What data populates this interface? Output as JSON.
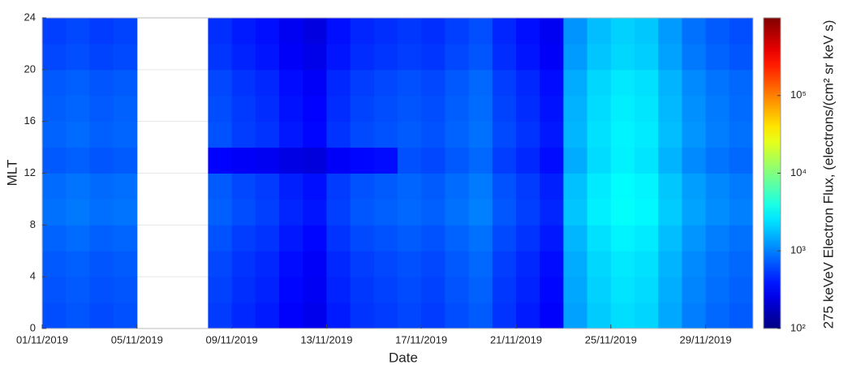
{
  "chart_data": {
    "type": "heatmap",
    "xlabel": "Date",
    "ylabel": "MLT",
    "categories": [
      "01/11/2019",
      null,
      null,
      null,
      "05/11/2019",
      null,
      null,
      null,
      "09/11/2019",
      null,
      null,
      null,
      "13/11/2019",
      null,
      null,
      null,
      "17/11/2019",
      null,
      null,
      null,
      "21/11/2019",
      null,
      null,
      null,
      "25/11/2019",
      null,
      null,
      null,
      "29/11/2019",
      null
    ],
    "ybins": [
      0,
      2,
      4,
      6,
      8,
      10,
      12,
      14,
      16,
      18,
      20,
      22,
      24
    ],
    "ylim": [
      0,
      24
    ],
    "yticks": [
      0,
      4,
      8,
      12,
      16,
      20,
      24
    ],
    "grid": true,
    "z": [
      [
        630,
        680,
        610,
        650,
        null,
        null,
        null,
        540,
        450,
        400,
        310,
        270,
        400,
        500,
        540,
        590,
        540,
        630,
        720,
        500,
        400,
        310,
        1350,
        1980,
        2340,
        2160,
        1440,
        990,
        810,
        720
      ],
      [
        670,
        710,
        650,
        680,
        null,
        null,
        null,
        570,
        480,
        430,
        330,
        290,
        430,
        520,
        570,
        620,
        570,
        670,
        760,
        520,
        430,
        330,
        1430,
        2090,
        2470,
        2280,
        1520,
        1050,
        860,
        760
      ],
      [
        700,
        750,
        680,
        720,
        null,
        null,
        null,
        600,
        500,
        450,
        350,
        300,
        450,
        550,
        600,
        650,
        600,
        700,
        800,
        550,
        450,
        350,
        1500,
        2200,
        2600,
        2400,
        1600,
        1100,
        900,
        800
      ],
      [
        770,
        830,
        750,
        790,
        null,
        null,
        null,
        660,
        550,
        500,
        390,
        330,
        500,
        610,
        660,
        720,
        660,
        770,
        880,
        610,
        500,
        390,
        1650,
        2420,
        2860,
        2640,
        1760,
        1210,
        990,
        880
      ],
      [
        880,
        940,
        850,
        900,
        null,
        null,
        null,
        750,
        630,
        560,
        440,
        380,
        560,
        690,
        750,
        810,
        750,
        880,
        1000,
        690,
        560,
        440,
        1880,
        2750,
        3250,
        3000,
        2000,
        1380,
        1130,
        1000
      ],
      [
        840,
        900,
        820,
        860,
        null,
        null,
        null,
        720,
        600,
        540,
        420,
        360,
        540,
        660,
        720,
        780,
        720,
        840,
        960,
        660,
        540,
        420,
        1800,
        2640,
        3120,
        2880,
        1920,
        1320,
        1080,
        960
      ],
      [
        700,
        750,
        680,
        720,
        null,
        null,
        null,
        320,
        300,
        280,
        250,
        230,
        300,
        330,
        350,
        650,
        600,
        700,
        800,
        550,
        450,
        350,
        1500,
        2300,
        2800,
        2500,
        1600,
        1100,
        900,
        800
      ],
      [
        770,
        830,
        750,
        790,
        null,
        null,
        null,
        660,
        550,
        500,
        390,
        330,
        500,
        610,
        660,
        720,
        660,
        770,
        880,
        610,
        500,
        390,
        1650,
        2420,
        2860,
        2640,
        1760,
        1210,
        990,
        880
      ],
      [
        740,
        790,
        710,
        760,
        null,
        null,
        null,
        630,
        530,
        470,
        370,
        320,
        470,
        580,
        630,
        680,
        630,
        740,
        840,
        580,
        470,
        370,
        1580,
        2310,
        2730,
        2520,
        1680,
        1160,
        950,
        840
      ],
      [
        700,
        750,
        680,
        720,
        null,
        null,
        null,
        600,
        500,
        450,
        350,
        300,
        450,
        550,
        600,
        650,
        600,
        700,
        800,
        550,
        450,
        350,
        1500,
        2200,
        2600,
        2400,
        1600,
        1100,
        900,
        800
      ],
      [
        600,
        640,
        580,
        610,
        null,
        null,
        null,
        510,
        430,
        380,
        300,
        260,
        380,
        470,
        510,
        550,
        510,
        600,
        680,
        470,
        380,
        300,
        1280,
        1870,
        2210,
        2040,
        1360,
        940,
        770,
        680
      ],
      [
        560,
        600,
        540,
        580,
        null,
        null,
        null,
        480,
        400,
        360,
        280,
        240,
        360,
        440,
        480,
        520,
        480,
        560,
        640,
        440,
        360,
        280,
        1200,
        1760,
        2080,
        1920,
        1280,
        880,
        720,
        640
      ]
    ],
    "colormap": "jet",
    "color_scale": "log",
    "clim": [
      100,
      1000000
    ],
    "cticks": [
      {
        "value": 100,
        "label": "10²"
      },
      {
        "value": 1000,
        "label": "10³"
      },
      {
        "value": 10000,
        "label": "10⁴"
      },
      {
        "value": 100000,
        "label": "10⁵"
      }
    ],
    "colorbar_label": "275 keVeV Electron Flux, (electrons/(cm² sr keV s)"
  }
}
